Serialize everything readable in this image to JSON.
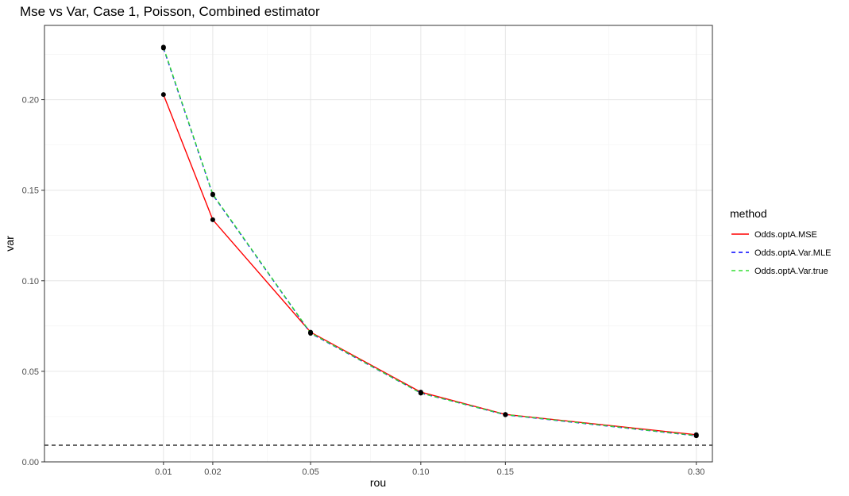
{
  "chart_data": {
    "type": "line",
    "title": "Mse vs Var, Case 1, Poisson, Combined estimator",
    "xlabel": "rou",
    "ylabel": "var",
    "x": [
      0.01,
      0.02,
      0.05,
      0.1,
      0.15,
      0.3
    ],
    "x_ticks": [
      0.01,
      0.02,
      0.05,
      0.1,
      0.15,
      0.3
    ],
    "x_tick_labels": [
      "0.01",
      "0.02",
      "0.05",
      "0.10",
      "0.15",
      "0.30"
    ],
    "y_ticks": [
      0.0,
      0.05,
      0.1,
      0.15,
      0.2
    ],
    "y_tick_labels": [
      "0.00",
      "0.05",
      "0.10",
      "0.15",
      "0.20"
    ],
    "x_scale": "sqrt",
    "xlim": [
      0.0,
      0.315
    ],
    "ylim": [
      0.0,
      0.241
    ],
    "grid": true,
    "legend": {
      "title": "method",
      "position": "right"
    },
    "series": [
      {
        "name": "Odds.optA.MSE",
        "color": "#ff0000",
        "dash": "solid",
        "values": [
          0.2028,
          0.1337,
          0.0716,
          0.0385,
          0.0262,
          0.015
        ]
      },
      {
        "name": "Odds.optA.Var.MLE",
        "color": "#0000ff",
        "dash": "dashed",
        "values": [
          0.2285,
          0.1475,
          0.071,
          0.038,
          0.026,
          0.0144
        ]
      },
      {
        "name": "Odds.optA.Var.true",
        "color": "#33dd33",
        "dash": "dashed",
        "values": [
          0.229,
          0.1478,
          0.0712,
          0.038,
          0.0261,
          0.0145
        ]
      }
    ],
    "hline": {
      "y": 0.0092,
      "color": "#333333",
      "dash": "dashed"
    }
  }
}
